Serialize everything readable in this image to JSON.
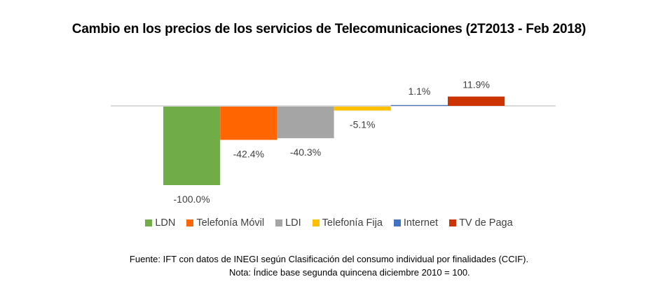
{
  "chart_data": {
    "type": "bar",
    "title": "Cambio en los precios de los servicios de Telecomunicaciones (2T2013 - Feb 2018)",
    "xlabel": "",
    "ylabel": "",
    "ylim": [
      -100,
      11.9
    ],
    "grid": false,
    "legend_position": "bottom",
    "categories": [
      "LDN",
      "Telefonía Móvil",
      "LDI",
      "Telefonía Fija",
      "Internet",
      "TV de Paga"
    ],
    "values": [
      -100.0,
      -42.4,
      -40.3,
      -5.1,
      1.1,
      11.9
    ],
    "data_labels": [
      "-100.0%",
      "-42.4%",
      "-40.3%",
      "-5.1%",
      "1.1%",
      "11.9%"
    ],
    "colors": [
      "#70AD47",
      "#FF6600",
      "#A5A5A5",
      "#FFC000",
      "#4472C4",
      "#CC3300"
    ]
  },
  "footer": {
    "source": "Fuente: IFT con datos de INEGI según Clasificación del consumo individual por finalidades (CCIF).",
    "note": "Nota: Índice base segunda quincena diciembre 2010 = 100."
  }
}
